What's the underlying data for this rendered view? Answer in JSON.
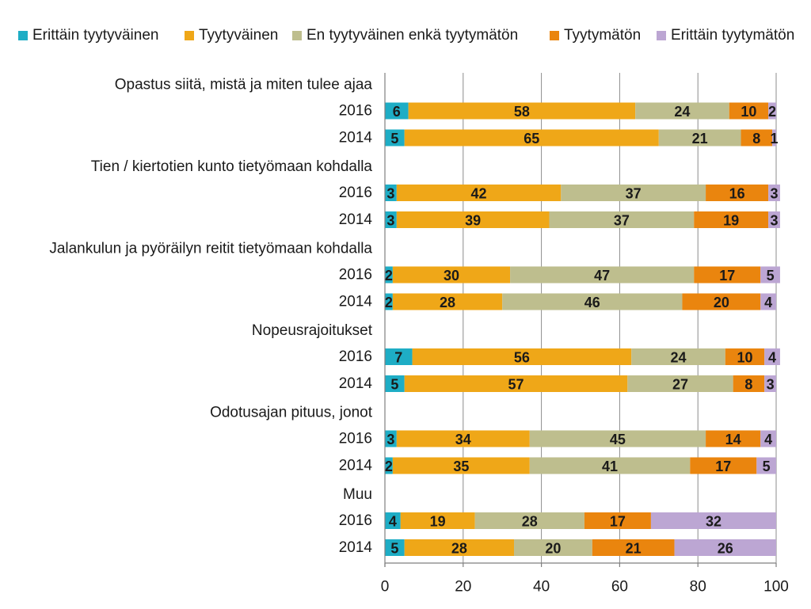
{
  "chart_data": {
    "type": "bar",
    "orientation": "horizontal",
    "stacked": true,
    "xlim": [
      0,
      100
    ],
    "xticks": [
      "0",
      "20",
      "40",
      "60",
      "80",
      "100"
    ],
    "grid": "vertical",
    "legend_position": "top",
    "series": [
      {
        "name": "Erittäin tyytyväinen",
        "color": "#1EADC5"
      },
      {
        "name": "Tyytyväinen",
        "color": "#EFA718"
      },
      {
        "name": "En tyytyväinen enkä tyytymätön",
        "color": "#BEBE8E"
      },
      {
        "name": "Tyytymätön",
        "color": "#EA850E"
      },
      {
        "name": "Erittäin tyytymätön",
        "color": "#BCA6D3"
      }
    ],
    "groups": [
      {
        "label": "Opastus siitä, mistä ja miten tulee ajaa",
        "rows": [
          {
            "year": "2016",
            "values": [
              6,
              58,
              24,
              10,
              2
            ]
          },
          {
            "year": "2014",
            "values": [
              5,
              65,
              21,
              8,
              1
            ]
          }
        ]
      },
      {
        "label": "Tien / kiertotien kunto tietyömaan kohdalla",
        "rows": [
          {
            "year": "2016",
            "values": [
              3,
              42,
              37,
              16,
              3
            ]
          },
          {
            "year": "2014",
            "values": [
              3,
              39,
              37,
              19,
              3
            ]
          }
        ]
      },
      {
        "label": "Jalankulun ja pyöräilyn reitit tietyömaan kohdalla",
        "rows": [
          {
            "year": "2016",
            "values": [
              2,
              30,
              47,
              17,
              5
            ]
          },
          {
            "year": "2014",
            "values": [
              2,
              28,
              46,
              20,
              4
            ]
          }
        ]
      },
      {
        "label": "Nopeusrajoitukset",
        "rows": [
          {
            "year": "2016",
            "values": [
              7,
              56,
              24,
              10,
              4
            ]
          },
          {
            "year": "2014",
            "values": [
              5,
              57,
              27,
              8,
              3
            ]
          }
        ]
      },
      {
        "label": "Odotusajan pituus, jonot",
        "rows": [
          {
            "year": "2016",
            "values": [
              3,
              34,
              45,
              14,
              4
            ]
          },
          {
            "year": "2014",
            "values": [
              2,
              35,
              41,
              17,
              5
            ]
          }
        ]
      },
      {
        "label": "Muu",
        "rows": [
          {
            "year": "2016",
            "values": [
              4,
              19,
              28,
              17,
              32
            ]
          },
          {
            "year": "2014",
            "values": [
              5,
              28,
              20,
              21,
              26
            ]
          }
        ]
      }
    ]
  }
}
